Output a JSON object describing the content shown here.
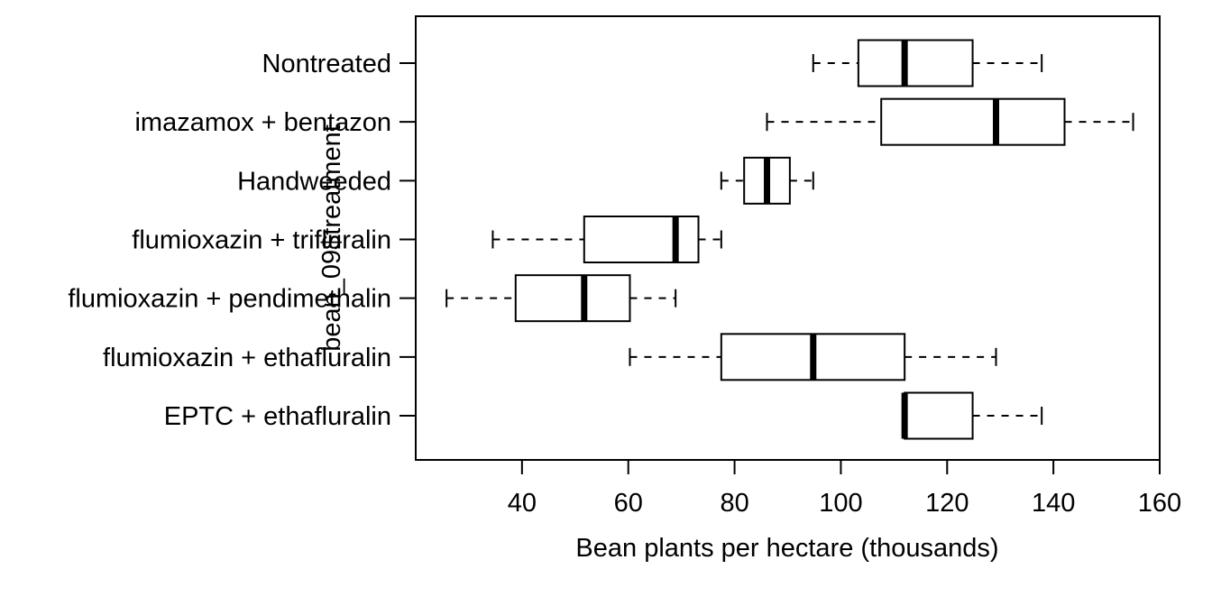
{
  "chart_data": {
    "type": "boxplot",
    "orientation": "horizontal",
    "title": "",
    "xlabel": "Bean plants per hectare (thousands)",
    "ylabel": "bean_09$treatment",
    "xlim": [
      20,
      160
    ],
    "xticks": [
      40,
      60,
      80,
      100,
      120,
      140,
      160
    ],
    "grid": false,
    "categories": [
      "EPTC + ethafluralin",
      "flumioxazin + ethafluralin",
      "flumioxazin + pendimethalin",
      "flumioxazin + trifluralin",
      "Handweeded",
      "imazamox + bentazon",
      "Nontreated"
    ],
    "boxes": [
      {
        "category": "EPTC + ethafluralin",
        "min": 112,
        "q1": 112,
        "median": 112,
        "q3": 124.8,
        "max": 137.8
      },
      {
        "category": "flumioxazin + ethafluralin",
        "min": 60.3,
        "q1": 77.5,
        "median": 94.8,
        "q3": 112,
        "max": 129.2
      },
      {
        "category": "flumioxazin + pendimethalin",
        "min": 25.8,
        "q1": 38.8,
        "median": 51.7,
        "q3": 60.3,
        "max": 68.9
      },
      {
        "category": "flumioxazin + trifluralin",
        "min": 34.5,
        "q1": 51.7,
        "median": 68.9,
        "q3": 73.2,
        "max": 77.5
      },
      {
        "category": "Handweeded",
        "min": 77.5,
        "q1": 81.8,
        "median": 86.1,
        "q3": 90.4,
        "max": 94.8
      },
      {
        "category": "imazamox + bentazon",
        "min": 86.1,
        "q1": 107.6,
        "median": 129.2,
        "q3": 142.1,
        "max": 155
      },
      {
        "category": "Nontreated",
        "min": 94.8,
        "q1": 103.3,
        "median": 112,
        "q3": 124.8,
        "max": 137.8
      }
    ],
    "colors": {
      "box_fill": "#ffffff",
      "stroke": "#000000"
    }
  }
}
